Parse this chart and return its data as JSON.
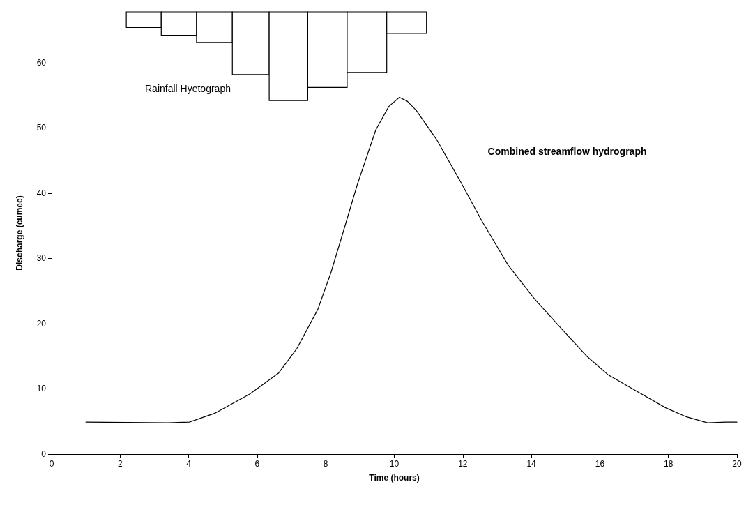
{
  "chart_data": {
    "type": "line",
    "xlabel": "Time (hours)",
    "ylabel": "Discharge (cumec)",
    "xlim": [
      0,
      20
    ],
    "xticks": [
      0,
      2,
      4,
      6,
      8,
      10,
      12,
      14,
      16,
      18,
      20
    ],
    "ylim": [
      0,
      67.8
    ],
    "yticks": [
      0,
      10,
      20,
      30,
      40,
      50,
      60
    ],
    "grid": false,
    "marker": "none",
    "line_style": "solid",
    "annotations": [
      "Rainfall Hyetograph",
      "Combined streamflow hydrograph"
    ],
    "series": [
      {
        "color": "#000000",
        "x": [
          1.0,
          3.4,
          4.02,
          4.78,
          5.78,
          6.62,
          7.16,
          7.77,
          8.15,
          8.54,
          8.92,
          9.46,
          9.84,
          10.15,
          10.38,
          10.64,
          11.25,
          11.94,
          12.55,
          13.32,
          14.09,
          14.85,
          15.62,
          16.23,
          17.15,
          17.92,
          18.53,
          19.14,
          19.67,
          20.0
        ],
        "values": [
          4.9,
          4.8,
          4.9,
          6.3,
          9.2,
          12.4,
          16.2,
          22.2,
          27.8,
          34.6,
          41.3,
          49.7,
          53.3,
          54.7,
          54.1,
          52.7,
          48.1,
          41.7,
          35.8,
          29.0,
          23.8,
          19.4,
          15.0,
          12.2,
          9.4,
          7.1,
          5.7,
          4.8,
          4.9,
          4.9
        ]
      },
      {
        "type": "bar",
        "color": "#000000",
        "x": [
          2.69,
          3.71,
          4.75,
          5.8,
          6.9,
          8.05,
          9.2,
          10.36
        ],
        "base": [
          67.8,
          67.8,
          67.8,
          67.8,
          67.8,
          67.8,
          67.8,
          67.8
        ],
        "values": [
          -2.4,
          -3.6,
          -4.7,
          -9.6,
          -13.6,
          -11.6,
          -9.3,
          -3.3
        ]
      }
    ]
  }
}
